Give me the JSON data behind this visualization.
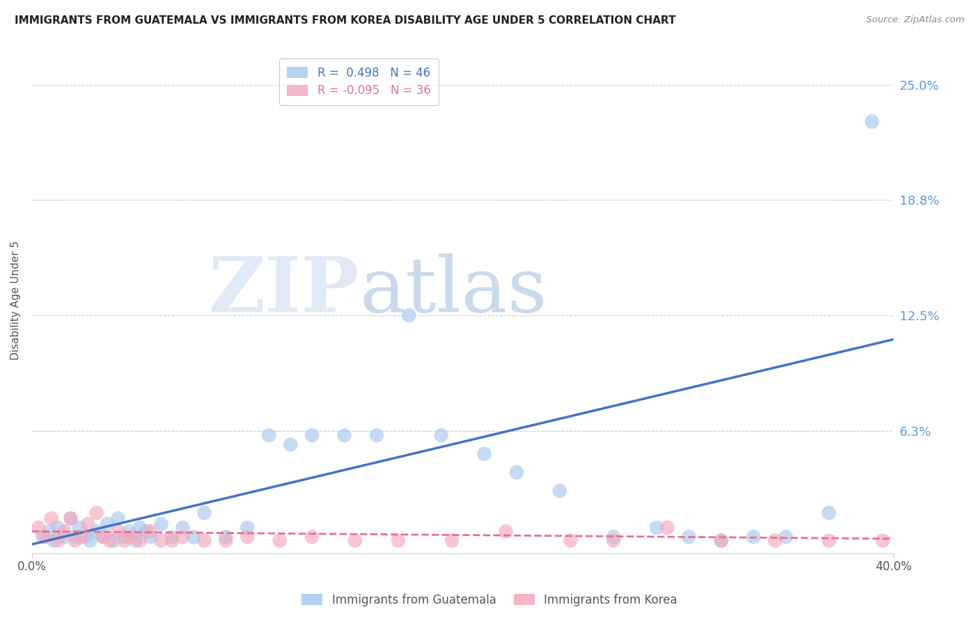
{
  "title": "IMMIGRANTS FROM GUATEMALA VS IMMIGRANTS FROM KOREA DISABILITY AGE UNDER 5 CORRELATION CHART",
  "source": "Source: ZipAtlas.com",
  "ylabel": "Disability Age Under 5",
  "xlim": [
    0.0,
    0.4
  ],
  "ylim": [
    -0.004,
    0.27
  ],
  "ytick_vals": [
    0.0,
    0.0625,
    0.125,
    0.1875,
    0.25
  ],
  "ytick_labels": [
    "",
    "6.3%",
    "12.5%",
    "18.8%",
    "25.0%"
  ],
  "xtick_vals": [
    0.0,
    0.4
  ],
  "xtick_labels": [
    "0.0%",
    "40.0%"
  ],
  "legend_r1": "R =  0.498   N = 46",
  "legend_r2": "R = -0.095   N = 36",
  "blue_color": "#A8C8EE",
  "pink_color": "#F4A8BE",
  "blue_line_color": "#4472C4",
  "pink_line_color": "#E87090",
  "watermark_zip": "ZIP",
  "watermark_atlas": "atlas",
  "guatemala_x": [
    0.005,
    0.008,
    0.01,
    0.012,
    0.015,
    0.018,
    0.02,
    0.022,
    0.025,
    0.027,
    0.03,
    0.033,
    0.035,
    0.038,
    0.04,
    0.043,
    0.045,
    0.048,
    0.05,
    0.053,
    0.055,
    0.06,
    0.065,
    0.07,
    0.075,
    0.08,
    0.09,
    0.1,
    0.11,
    0.12,
    0.13,
    0.145,
    0.16,
    0.175,
    0.19,
    0.21,
    0.225,
    0.245,
    0.27,
    0.29,
    0.305,
    0.32,
    0.335,
    0.35,
    0.37,
    0.39
  ],
  "guatemala_y": [
    0.005,
    0.008,
    0.003,
    0.01,
    0.005,
    0.015,
    0.005,
    0.01,
    0.005,
    0.003,
    0.008,
    0.005,
    0.012,
    0.003,
    0.015,
    0.005,
    0.008,
    0.003,
    0.01,
    0.008,
    0.005,
    0.012,
    0.005,
    0.01,
    0.005,
    0.018,
    0.005,
    0.01,
    0.06,
    0.055,
    0.06,
    0.06,
    0.06,
    0.125,
    0.06,
    0.05,
    0.04,
    0.03,
    0.005,
    0.01,
    0.005,
    0.003,
    0.005,
    0.005,
    0.018,
    0.23
  ],
  "korea_x": [
    0.003,
    0.006,
    0.009,
    0.012,
    0.015,
    0.018,
    0.02,
    0.023,
    0.026,
    0.03,
    0.033,
    0.036,
    0.04,
    0.043,
    0.046,
    0.05,
    0.055,
    0.06,
    0.065,
    0.07,
    0.08,
    0.09,
    0.1,
    0.115,
    0.13,
    0.15,
    0.17,
    0.195,
    0.22,
    0.25,
    0.27,
    0.295,
    0.32,
    0.345,
    0.37,
    0.395
  ],
  "korea_y": [
    0.01,
    0.005,
    0.015,
    0.003,
    0.008,
    0.015,
    0.003,
    0.005,
    0.012,
    0.018,
    0.005,
    0.003,
    0.008,
    0.003,
    0.005,
    0.003,
    0.008,
    0.003,
    0.003,
    0.005,
    0.003,
    0.003,
    0.005,
    0.003,
    0.005,
    0.003,
    0.003,
    0.003,
    0.008,
    0.003,
    0.003,
    0.01,
    0.003,
    0.003,
    0.003,
    0.003
  ],
  "blue_trend_x": [
    0.0,
    0.4
  ],
  "blue_trend_y": [
    0.001,
    0.112
  ],
  "pink_trend_x": [
    0.0,
    0.4
  ],
  "pink_trend_y": [
    0.008,
    0.004
  ]
}
